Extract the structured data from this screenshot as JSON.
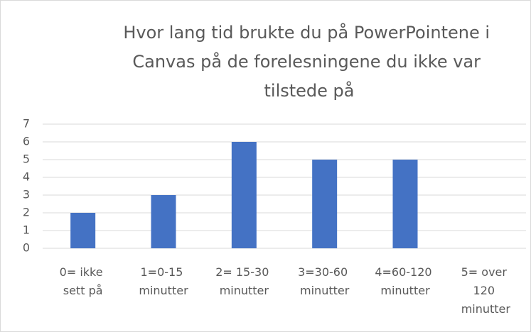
{
  "chart_data": {
    "type": "bar",
    "title": "Hvor lang tid brukte du på PowerPointene i Canvas på de forelesningene du ikke var tilstede på",
    "categories": [
      "0= ikke sett på",
      "1=0-15 minutter",
      "2= 15-30 minutter",
      "3=30-60 minutter",
      "4=60-120 minutter",
      "5= over 120 minutter"
    ],
    "values": [
      2,
      3,
      6,
      5,
      5,
      0
    ],
    "color": "#4472c4",
    "ylim": [
      0,
      7
    ],
    "yticks": [
      0,
      1,
      2,
      3,
      4,
      5,
      6,
      7
    ],
    "grid": true
  }
}
